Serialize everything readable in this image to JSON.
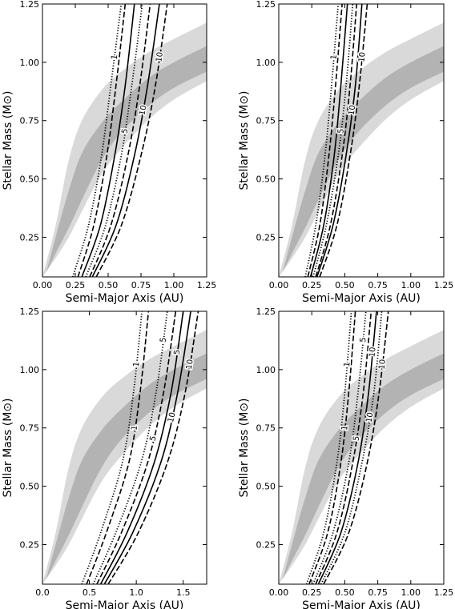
{
  "figure": {
    "sun_symbol": "sun-symbol"
  },
  "chart_data": [
    {
      "type": "line",
      "panel": "top-left",
      "xlabel": "Semi-Major Axis (AU)",
      "ylabel": "Stellar Mass (M⊙)",
      "xlim": [
        0.0,
        1.25
      ],
      "ylim": [
        0.08,
        1.25
      ],
      "xticks": [
        "0.00",
        "0.25",
        "0.50",
        "0.75",
        "1.00",
        "1.25"
      ],
      "yticks": [
        "0.25",
        "0.50",
        "0.75",
        "1.00",
        "1.25"
      ],
      "shaded_regions": [
        {
          "color": "#d9d9d9",
          "x": [
            0.0,
            0.1,
            0.2,
            0.3,
            0.45,
            0.6,
            0.8,
            1.0,
            1.25
          ],
          "upper": [
            0.08,
            0.3,
            0.58,
            0.75,
            0.88,
            0.96,
            1.04,
            1.1,
            1.17
          ],
          "lower": [
            0.08,
            0.16,
            0.25,
            0.36,
            0.52,
            0.63,
            0.75,
            0.84,
            0.92
          ]
        },
        {
          "color": "#b3b3b3",
          "x": [
            0.03,
            0.1,
            0.2,
            0.3,
            0.45,
            0.6,
            0.8,
            1.0,
            1.25
          ],
          "upper": [
            0.1,
            0.25,
            0.45,
            0.61,
            0.74,
            0.83,
            0.93,
            1.0,
            1.07
          ],
          "lower": [
            0.1,
            0.18,
            0.29,
            0.41,
            0.58,
            0.7,
            0.81,
            0.89,
            0.96
          ]
        }
      ],
      "series": [
        {
          "style": "dotted",
          "label": "1",
          "x": [
            0.23,
            0.35,
            0.45,
            0.52,
            0.6
          ],
          "y": [
            0.08,
            0.3,
            0.6,
            0.9,
            1.25
          ]
        },
        {
          "style": "dashed",
          "x": [
            0.27,
            0.39,
            0.49,
            0.56,
            0.63
          ],
          "y": [
            0.08,
            0.3,
            0.6,
            0.9,
            1.25
          ]
        },
        {
          "style": "solid",
          "x": [
            0.3,
            0.44,
            0.55,
            0.63,
            0.7
          ],
          "y": [
            0.08,
            0.3,
            0.6,
            0.9,
            1.25
          ]
        },
        {
          "style": "dotted",
          "label": "5",
          "x": [
            0.33,
            0.48,
            0.6,
            0.68,
            0.76
          ],
          "y": [
            0.08,
            0.3,
            0.6,
            0.9,
            1.25
          ]
        },
        {
          "style": "dashed",
          "x": [
            0.36,
            0.52,
            0.65,
            0.74,
            0.82
          ],
          "y": [
            0.08,
            0.3,
            0.6,
            0.9,
            1.25
          ]
        },
        {
          "style": "solid",
          "label": "10",
          "x": [
            0.38,
            0.56,
            0.7,
            0.8,
            0.89
          ],
          "y": [
            0.08,
            0.3,
            0.6,
            0.9,
            1.25
          ]
        },
        {
          "style": "dashed",
          "label": "10",
          "x": [
            0.41,
            0.6,
            0.75,
            0.86,
            0.95
          ],
          "y": [
            0.08,
            0.3,
            0.6,
            0.9,
            1.25
          ]
        }
      ]
    },
    {
      "type": "line",
      "panel": "top-right",
      "xlabel": "Semi-Major Axis (AU)",
      "ylabel": "Stellar Mass (M⊙)",
      "xlim": [
        0.0,
        1.25
      ],
      "ylim": [
        0.08,
        1.25
      ],
      "xticks": [
        "0.00",
        "0.25",
        "0.50",
        "0.75",
        "1.00",
        "1.25"
      ],
      "yticks": [
        "0.25",
        "0.50",
        "0.75",
        "1.00",
        "1.25"
      ],
      "shaded_regions": [
        {
          "color": "#d9d9d9",
          "x": [
            0.0,
            0.1,
            0.2,
            0.3,
            0.45,
            0.6,
            0.8,
            1.0,
            1.25
          ],
          "upper": [
            0.08,
            0.3,
            0.58,
            0.75,
            0.88,
            0.96,
            1.04,
            1.1,
            1.17
          ],
          "lower": [
            0.08,
            0.16,
            0.25,
            0.36,
            0.52,
            0.63,
            0.75,
            0.84,
            0.92
          ]
        },
        {
          "color": "#b3b3b3",
          "x": [
            0.03,
            0.1,
            0.2,
            0.3,
            0.45,
            0.6,
            0.8,
            1.0,
            1.25
          ],
          "upper": [
            0.1,
            0.25,
            0.45,
            0.61,
            0.74,
            0.83,
            0.93,
            1.0,
            1.07
          ],
          "lower": [
            0.1,
            0.18,
            0.29,
            0.41,
            0.58,
            0.7,
            0.81,
            0.89,
            0.96
          ]
        }
      ],
      "series": [
        {
          "style": "dotted",
          "label": "1",
          "x": [
            0.2,
            0.28,
            0.35,
            0.4,
            0.45
          ],
          "y": [
            0.08,
            0.3,
            0.6,
            0.9,
            1.25
          ]
        },
        {
          "style": "dashed",
          "x": [
            0.22,
            0.31,
            0.38,
            0.43,
            0.48
          ],
          "y": [
            0.08,
            0.3,
            0.6,
            0.9,
            1.25
          ]
        },
        {
          "style": "solid",
          "x": [
            0.24,
            0.34,
            0.42,
            0.47,
            0.52
          ],
          "y": [
            0.08,
            0.3,
            0.6,
            0.9,
            1.25
          ]
        },
        {
          "style": "dotted",
          "label": "5",
          "x": [
            0.26,
            0.36,
            0.45,
            0.51,
            0.56
          ],
          "y": [
            0.08,
            0.3,
            0.6,
            0.9,
            1.25
          ]
        },
        {
          "style": "dashed",
          "x": [
            0.28,
            0.39,
            0.48,
            0.54,
            0.59
          ],
          "y": [
            0.08,
            0.3,
            0.6,
            0.9,
            1.25
          ]
        },
        {
          "style": "solid",
          "label": "10",
          "x": [
            0.29,
            0.41,
            0.51,
            0.58,
            0.63
          ],
          "y": [
            0.08,
            0.3,
            0.6,
            0.9,
            1.25
          ]
        },
        {
          "style": "dashed",
          "label": "10",
          "x": [
            0.31,
            0.44,
            0.54,
            0.61,
            0.67
          ],
          "y": [
            0.08,
            0.3,
            0.6,
            0.9,
            1.25
          ]
        }
      ]
    },
    {
      "type": "line",
      "panel": "bottom-left",
      "xlabel": "Semi-Major Axis (AU)",
      "ylabel": "Stellar Mass (M⊙)",
      "xlim": [
        0.0,
        1.75
      ],
      "ylim": [
        0.08,
        1.25
      ],
      "xticks": [
        "0.0",
        "0.5",
        "1.0",
        "1.5"
      ],
      "yticks": [
        "0.25",
        "0.50",
        "0.75",
        "1.00",
        "1.25"
      ],
      "shaded_regions": [
        {
          "color": "#d9d9d9",
          "x": [
            0.0,
            0.14,
            0.28,
            0.42,
            0.63,
            0.84,
            1.12,
            1.4,
            1.75
          ],
          "upper": [
            0.08,
            0.3,
            0.58,
            0.75,
            0.88,
            0.96,
            1.04,
            1.1,
            1.17
          ],
          "lower": [
            0.08,
            0.16,
            0.25,
            0.36,
            0.52,
            0.63,
            0.75,
            0.84,
            0.92
          ]
        },
        {
          "color": "#b3b3b3",
          "x": [
            0.04,
            0.14,
            0.28,
            0.42,
            0.63,
            0.84,
            1.12,
            1.4,
            1.75
          ],
          "upper": [
            0.1,
            0.25,
            0.45,
            0.61,
            0.74,
            0.83,
            0.93,
            1.0,
            1.07
          ],
          "lower": [
            0.1,
            0.18,
            0.29,
            0.41,
            0.58,
            0.7,
            0.81,
            0.89,
            0.96
          ]
        }
      ],
      "series": [
        {
          "style": "dotted",
          "label": "1",
          "x": [
            0.42,
            0.62,
            0.85,
            0.97,
            1.06
          ],
          "y": [
            0.08,
            0.3,
            0.6,
            0.9,
            1.25
          ]
        },
        {
          "style": "dashed",
          "label": "1",
          "x": [
            0.47,
            0.68,
            0.92,
            1.04,
            1.13
          ],
          "y": [
            0.08,
            0.3,
            0.6,
            0.9,
            1.25
          ]
        },
        {
          "style": "dotted",
          "label": "5",
          "x": [
            0.54,
            0.78,
            1.05,
            1.21,
            1.33
          ],
          "y": [
            0.08,
            0.3,
            0.6,
            0.9,
            1.25
          ]
        },
        {
          "style": "dashed",
          "label": "5",
          "x": [
            0.58,
            0.84,
            1.12,
            1.29,
            1.42
          ],
          "y": [
            0.08,
            0.3,
            0.6,
            0.9,
            1.25
          ]
        },
        {
          "style": "solid",
          "label": "5",
          "x": [
            0.62,
            0.9,
            1.19,
            1.37,
            1.5
          ],
          "y": [
            0.08,
            0.3,
            0.6,
            0.9,
            1.25
          ]
        },
        {
          "style": "solid",
          "label": "10",
          "x": [
            0.66,
            0.96,
            1.26,
            1.44,
            1.58
          ],
          "y": [
            0.08,
            0.3,
            0.6,
            0.9,
            1.25
          ]
        },
        {
          "style": "dashed",
          "label": "10",
          "x": [
            0.7,
            1.02,
            1.33,
            1.52,
            1.66
          ],
          "y": [
            0.08,
            0.3,
            0.6,
            0.9,
            1.25
          ]
        }
      ]
    },
    {
      "type": "line",
      "panel": "bottom-right",
      "xlabel": "Semi-Major Axis (AU)",
      "ylabel": "Stellar Mass (M⊙)",
      "xlim": [
        0.0,
        1.25
      ],
      "ylim": [
        0.08,
        1.25
      ],
      "xticks": [
        "0.00",
        "0.25",
        "0.50",
        "0.75",
        "1.00",
        "1.25"
      ],
      "yticks": [
        "0.25",
        "0.50",
        "0.75",
        "1.00",
        "1.25"
      ],
      "shaded_regions": [
        {
          "color": "#d9d9d9",
          "x": [
            0.0,
            0.1,
            0.2,
            0.3,
            0.45,
            0.6,
            0.8,
            1.0,
            1.25
          ],
          "upper": [
            0.08,
            0.3,
            0.58,
            0.75,
            0.88,
            0.96,
            1.04,
            1.1,
            1.17
          ],
          "lower": [
            0.08,
            0.16,
            0.25,
            0.36,
            0.52,
            0.63,
            0.75,
            0.84,
            0.92
          ]
        },
        {
          "color": "#b3b3b3",
          "x": [
            0.03,
            0.1,
            0.2,
            0.3,
            0.45,
            0.6,
            0.8,
            1.0,
            1.25
          ],
          "upper": [
            0.1,
            0.25,
            0.45,
            0.61,
            0.74,
            0.83,
            0.93,
            1.0,
            1.07
          ],
          "lower": [
            0.1,
            0.18,
            0.29,
            0.41,
            0.58,
            0.7,
            0.81,
            0.89,
            0.96
          ]
        }
      ],
      "series": [
        {
          "style": "dotted",
          "label": "1",
          "x": [
            0.21,
            0.34,
            0.44,
            0.5,
            0.55
          ],
          "y": [
            0.08,
            0.3,
            0.6,
            0.9,
            1.25
          ]
        },
        {
          "style": "dashed",
          "label": "1",
          "x": [
            0.23,
            0.37,
            0.47,
            0.53,
            0.58
          ],
          "y": [
            0.08,
            0.3,
            0.6,
            0.9,
            1.25
          ]
        },
        {
          "style": "dotted",
          "label": "5",
          "x": [
            0.26,
            0.41,
            0.53,
            0.6,
            0.66
          ],
          "y": [
            0.08,
            0.3,
            0.6,
            0.9,
            1.25
          ]
        },
        {
          "style": "dashed",
          "label": "5",
          "x": [
            0.28,
            0.44,
            0.56,
            0.64,
            0.7
          ],
          "y": [
            0.08,
            0.3,
            0.6,
            0.9,
            1.25
          ]
        },
        {
          "style": "solid",
          "label": "10",
          "x": [
            0.3,
            0.47,
            0.6,
            0.68,
            0.74
          ],
          "y": [
            0.08,
            0.3,
            0.6,
            0.9,
            1.25
          ]
        },
        {
          "style": "dotted",
          "label": "10",
          "x": [
            0.32,
            0.5,
            0.63,
            0.72,
            0.78
          ],
          "y": [
            0.08,
            0.3,
            0.6,
            0.9,
            1.25
          ]
        },
        {
          "style": "dashed",
          "label": "10",
          "x": [
            0.34,
            0.53,
            0.67,
            0.76,
            0.83
          ],
          "y": [
            0.08,
            0.3,
            0.6,
            0.9,
            1.25
          ]
        }
      ]
    }
  ]
}
